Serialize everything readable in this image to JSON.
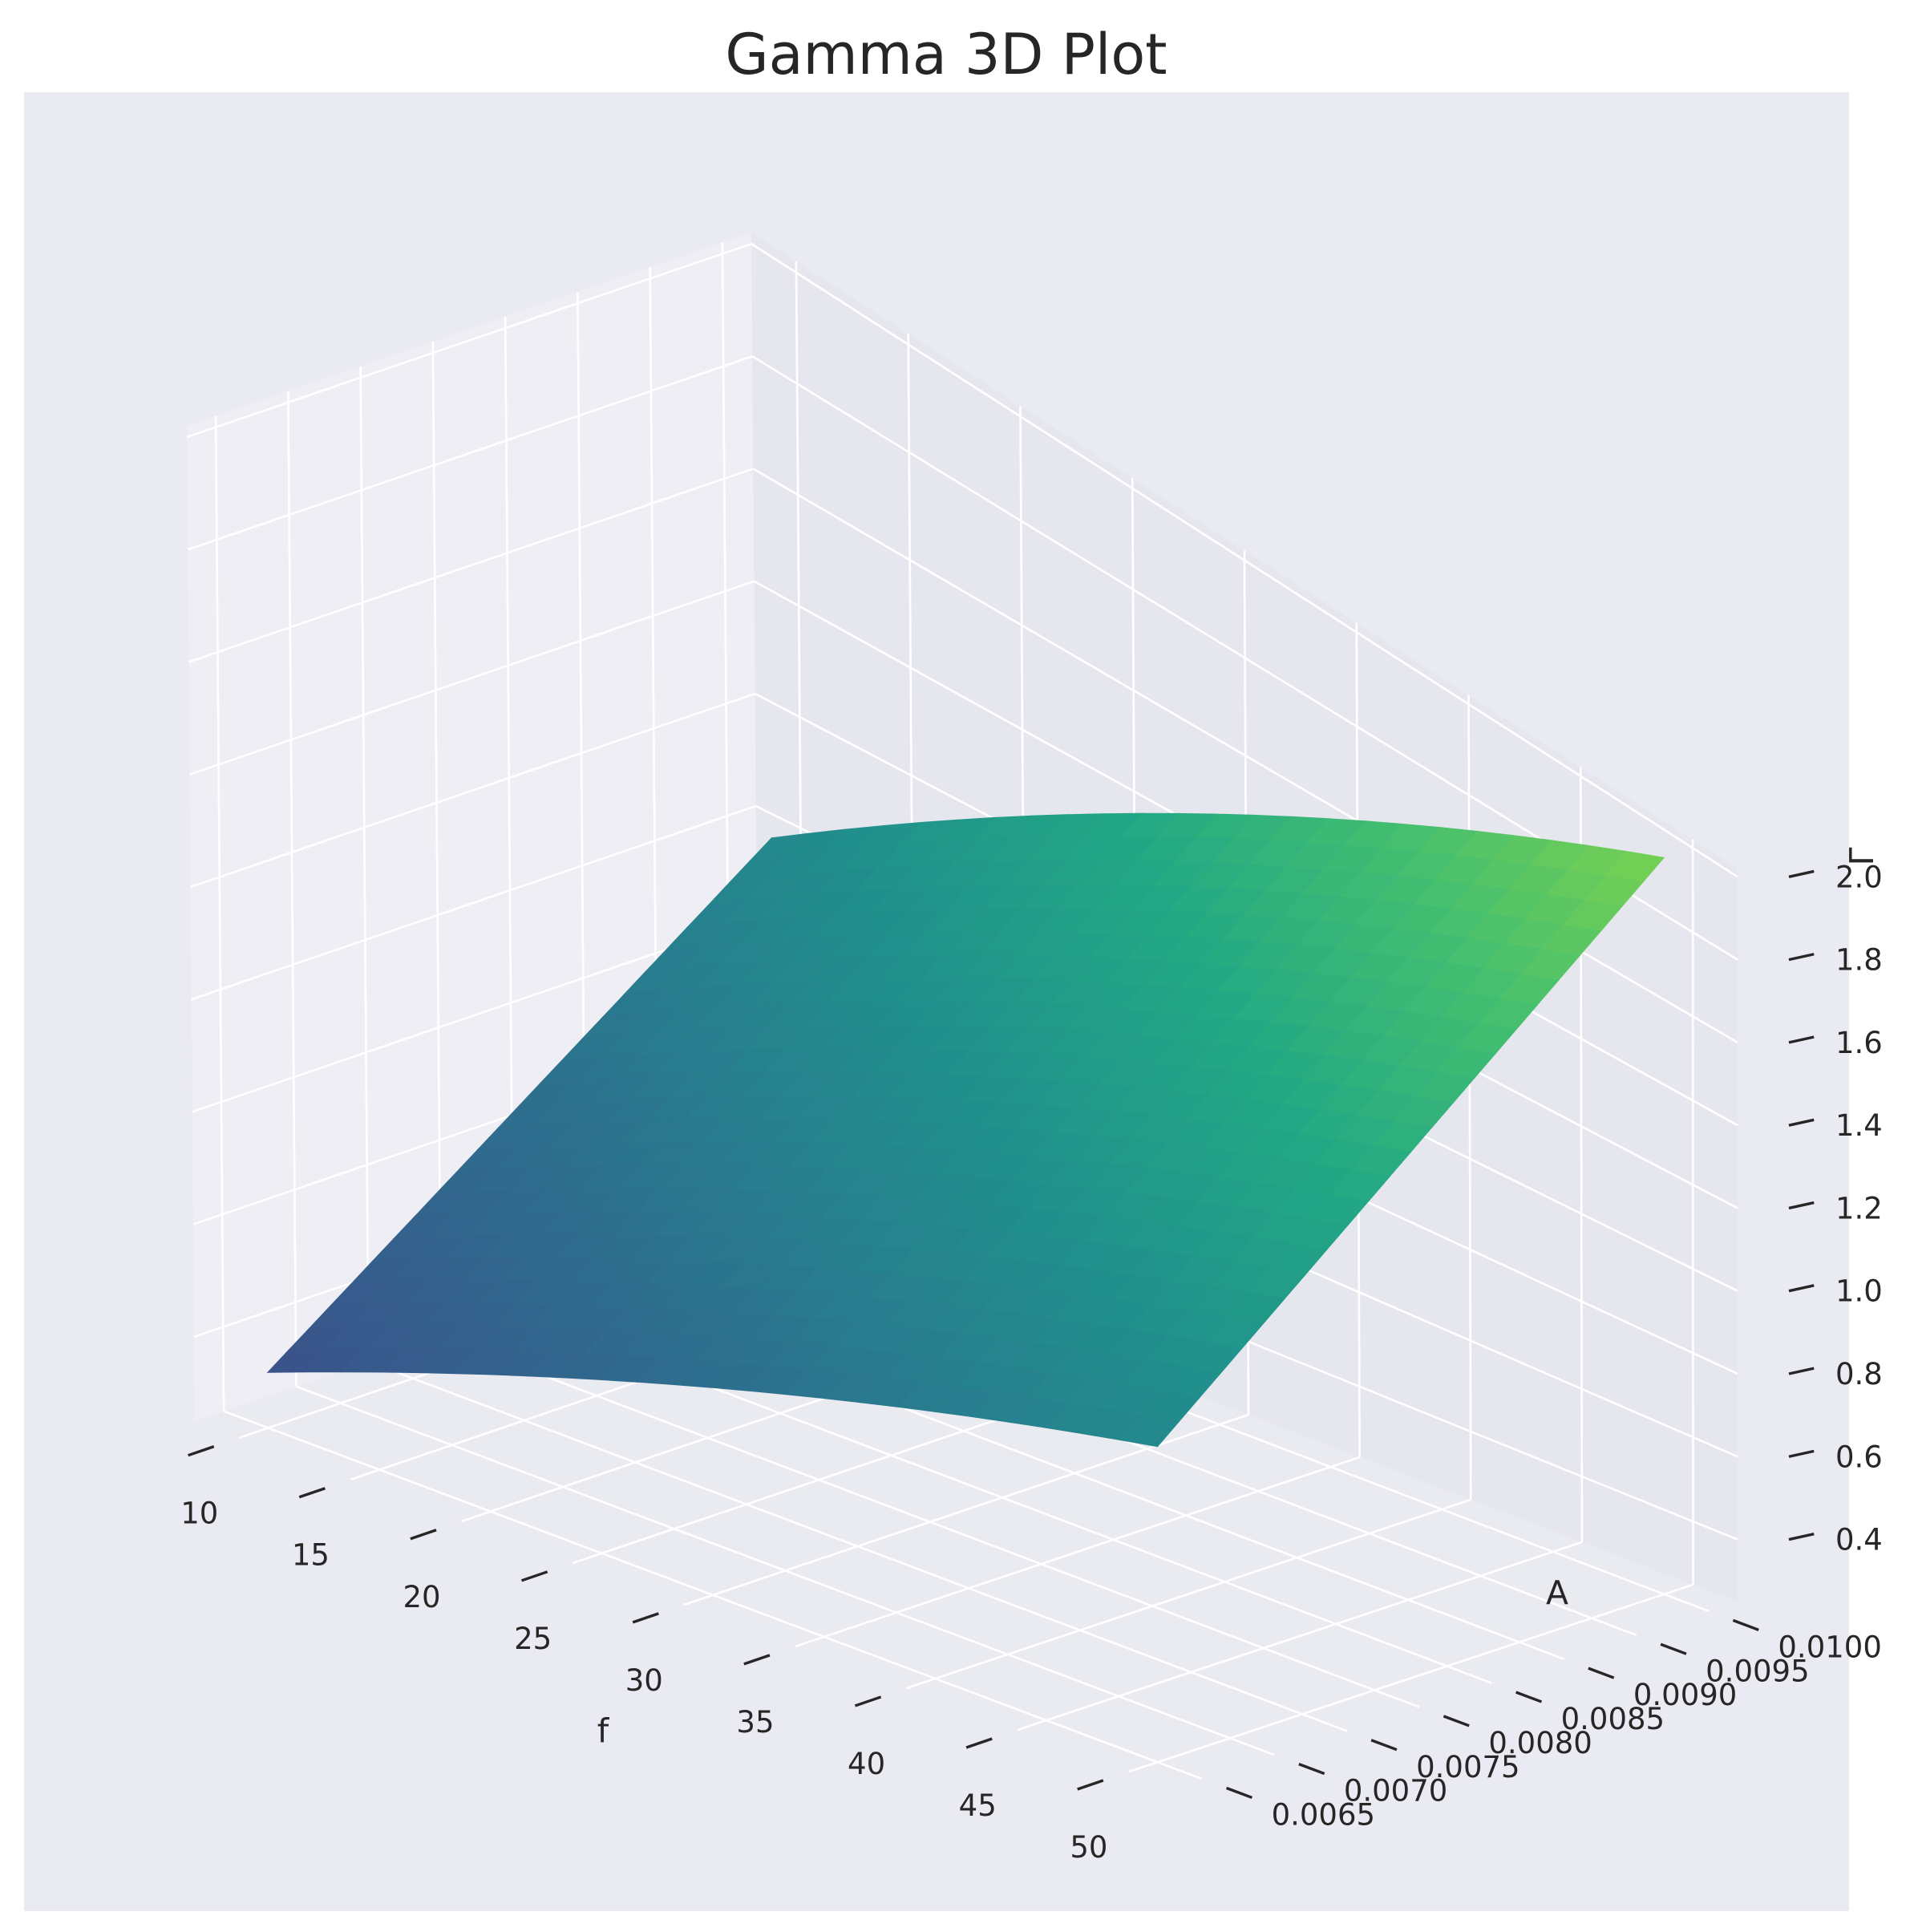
{
  "chart_data": {
    "type": "surface3d",
    "title": "Gamma 3D Plot",
    "xlabel": "f",
    "ylabel": "A",
    "zlabel": "Γ",
    "x_ticks": [
      "10",
      "15",
      "20",
      "25",
      "30",
      "35",
      "40",
      "45",
      "50"
    ],
    "y_ticks": [
      "0.0065",
      "0.0070",
      "0.0075",
      "0.0080",
      "0.0085",
      "0.0090",
      "0.0095",
      "0.0100"
    ],
    "z_ticks": [
      "0.4",
      "0.6",
      "0.8",
      "1.0",
      "1.2",
      "1.4",
      "1.6",
      "1.8",
      "2.0"
    ],
    "xlim": [
      8,
      52
    ],
    "ylim": [
      0.0063,
      0.0102
    ],
    "zlim": [
      0.25,
      2.02
    ],
    "surface": {
      "x": [
        10,
        50
      ],
      "y": [
        0.0065,
        0.01
      ],
      "z": [
        [
          0.35,
          1.0
        ],
        [
          1.0,
          2.0
        ]
      ]
    },
    "colormap": "viridis",
    "background_color": "#eaeaf2"
  }
}
